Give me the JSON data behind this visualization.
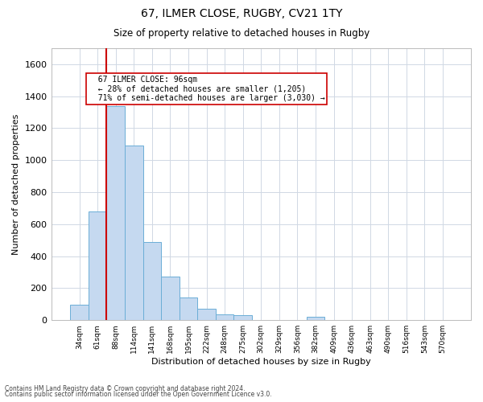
{
  "title1": "67, ILMER CLOSE, RUGBY, CV21 1TY",
  "title2": "Size of property relative to detached houses in Rugby",
  "xlabel": "Distribution of detached houses by size in Rugby",
  "ylabel": "Number of detached properties",
  "annotation_line1": "67 ILMER CLOSE: 96sqm",
  "annotation_line2": "← 28% of detached houses are smaller (1,205)",
  "annotation_line3": "71% of semi-detached houses are larger (3,030) →",
  "bar_color": "#c5d9f0",
  "bar_edge_color": "#6baed6",
  "marker_line_color": "#cc0000",
  "annotation_box_edge": "#cc0000",
  "background_color": "#ffffff",
  "grid_color": "#d0d8e4",
  "footnote1": "Contains HM Land Registry data © Crown copyright and database right 2024.",
  "footnote2": "Contains public sector information licensed under the Open Government Licence v3.0.",
  "bin_labels": [
    "34sqm",
    "61sqm",
    "88sqm",
    "114sqm",
    "141sqm",
    "168sqm",
    "195sqm",
    "222sqm",
    "248sqm",
    "275sqm",
    "302sqm",
    "329sqm",
    "356sqm",
    "382sqm",
    "409sqm",
    "436sqm",
    "463sqm",
    "490sqm",
    "516sqm",
    "543sqm",
    "570sqm"
  ],
  "bar_heights": [
    95,
    680,
    1340,
    1090,
    490,
    270,
    140,
    70,
    35,
    30,
    0,
    0,
    0,
    20,
    0,
    0,
    0,
    0,
    0,
    0,
    0
  ],
  "ylim": [
    0,
    1700
  ],
  "yticks": [
    0,
    200,
    400,
    600,
    800,
    1000,
    1200,
    1400,
    1600
  ],
  "marker_bin_index": 2
}
